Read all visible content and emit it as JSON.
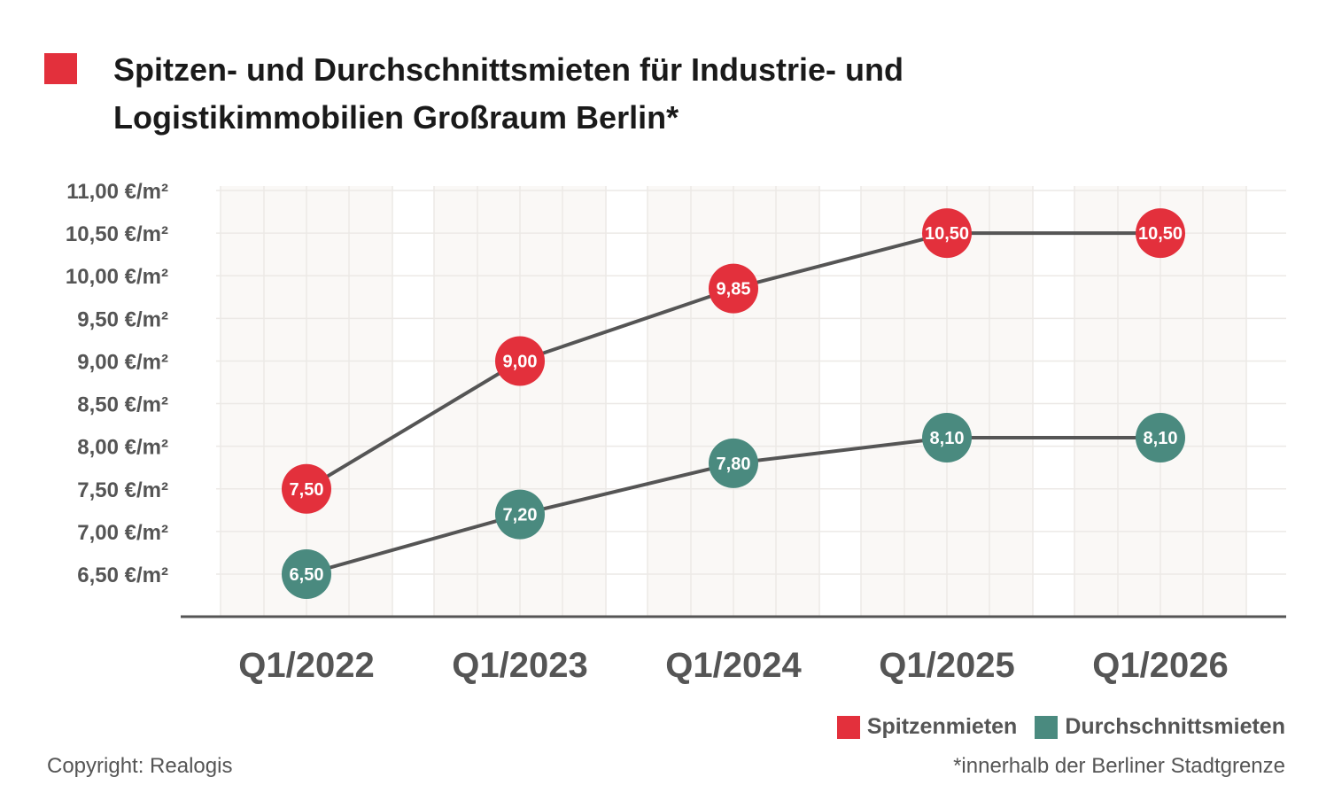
{
  "header": {
    "title": "Spitzen- und Durchschnittsmieten für Industrie- und Logistikimmobilien Großraum Berlin*"
  },
  "colors": {
    "spitzen": "#e3303c",
    "durchschnitt": "#4a8a7f",
    "line": "#555555",
    "grid_band": "#faf8f6",
    "axis": "#555555"
  },
  "chart_data": {
    "type": "line",
    "title": "Spitzen- und Durchschnittsmieten für Industrie- und Logistikimmobilien Großraum Berlin*",
    "categories": [
      "Q1/2022",
      "Q1/2023",
      "Q1/2024",
      "Q1/2025",
      "Q1/2026"
    ],
    "series": [
      {
        "name": "Spitzenmieten",
        "values": [
          7.5,
          9.0,
          9.85,
          10.5,
          10.5
        ],
        "labels": [
          "7,50",
          "9,00",
          "9,85",
          "10,50",
          "10,50"
        ]
      },
      {
        "name": "Durchschnittsmieten",
        "values": [
          6.5,
          7.2,
          7.8,
          8.1,
          8.1
        ],
        "labels": [
          "6,50",
          "7,20",
          "7,80",
          "8,10",
          "8,10"
        ]
      }
    ],
    "yticks": [
      6.5,
      7.0,
      7.5,
      8.0,
      8.5,
      9.0,
      9.5,
      10.0,
      10.5,
      11.0
    ],
    "ytick_labels": [
      "6,50 €/m²",
      "7,00 €/m²",
      "7,50 €/m²",
      "8,00 €/m²",
      "8,50 €/m²",
      "9,00 €/m²",
      "9,50 €/m²",
      "10,00 €/m²",
      "10,50 €/m²",
      "11,00 €/m²"
    ],
    "ylim": [
      6.0,
      11.0
    ],
    "grid": true,
    "legend_position": "bottom-right"
  },
  "legend": {
    "items": [
      {
        "label": "Spitzenmieten"
      },
      {
        "label": "Durchschnittsmieten"
      }
    ]
  },
  "footer": {
    "copyright": "Copyright: Realogis",
    "footnote": "*innerhalb der Berliner Stadtgrenze"
  }
}
